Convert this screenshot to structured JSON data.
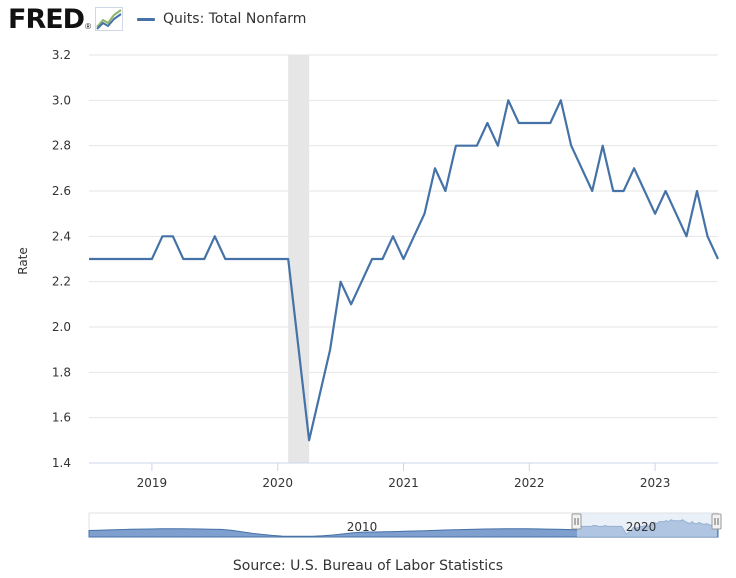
{
  "brand": {
    "logo_text": "FRED",
    "registered": "®"
  },
  "source": "Source: U.S. Bureau of Labor Statistics",
  "colors": {
    "series": "#4572a7",
    "recession": "#e6e6e6",
    "grid": "#e6e6e6",
    "navigator_fill": "#7f9fcf",
    "navigator_window": "#d9e3f2"
  },
  "chart_data": {
    "type": "line",
    "title": "",
    "xlabel": "",
    "ylabel": "Rate",
    "ylim": [
      1.4,
      3.2
    ],
    "yticks": [
      "1.4",
      "1.6",
      "1.8",
      "2.0",
      "2.2",
      "2.4",
      "2.6",
      "2.8",
      "3.0",
      "3.2"
    ],
    "xticks": [
      "2019",
      "2020",
      "2021",
      "2022",
      "2023"
    ],
    "xlim": [
      "2018-07",
      "2023-07"
    ],
    "grid": true,
    "legend_position": "top",
    "recession": {
      "start": "2020-02",
      "end": "2020-04"
    },
    "navigator_labels": [
      "2010",
      "2020"
    ],
    "series": [
      {
        "name": "Quits: Total Nonfarm",
        "x": [
          "2018-07",
          "2018-08",
          "2018-09",
          "2018-10",
          "2018-11",
          "2018-12",
          "2019-01",
          "2019-02",
          "2019-03",
          "2019-04",
          "2019-05",
          "2019-06",
          "2019-07",
          "2019-08",
          "2019-09",
          "2019-10",
          "2019-11",
          "2019-12",
          "2020-01",
          "2020-02",
          "2020-03",
          "2020-04",
          "2020-05",
          "2020-06",
          "2020-07",
          "2020-08",
          "2020-09",
          "2020-10",
          "2020-11",
          "2020-12",
          "2021-01",
          "2021-02",
          "2021-03",
          "2021-04",
          "2021-05",
          "2021-06",
          "2021-07",
          "2021-08",
          "2021-09",
          "2021-10",
          "2021-11",
          "2021-12",
          "2022-01",
          "2022-02",
          "2022-03",
          "2022-04",
          "2022-05",
          "2022-06",
          "2022-07",
          "2022-08",
          "2022-09",
          "2022-10",
          "2022-11",
          "2022-12",
          "2023-01",
          "2023-02",
          "2023-03",
          "2023-04",
          "2023-05",
          "2023-06",
          "2023-07"
        ],
        "values": [
          2.3,
          2.3,
          2.3,
          2.3,
          2.3,
          2.3,
          2.3,
          2.4,
          2.4,
          2.3,
          2.3,
          2.3,
          2.4,
          2.3,
          2.3,
          2.3,
          2.3,
          2.3,
          2.3,
          2.3,
          1.9,
          1.5,
          1.7,
          1.9,
          2.2,
          2.1,
          2.2,
          2.3,
          2.3,
          2.4,
          2.3,
          2.4,
          2.5,
          2.7,
          2.6,
          2.8,
          2.8,
          2.8,
          2.9,
          2.8,
          3.0,
          2.9,
          2.9,
          2.9,
          2.9,
          3.0,
          2.8,
          2.7,
          2.6,
          2.8,
          2.6,
          2.6,
          2.7,
          2.6,
          2.5,
          2.6,
          2.5,
          2.4,
          2.6,
          2.4,
          2.3
        ]
      }
    ]
  }
}
